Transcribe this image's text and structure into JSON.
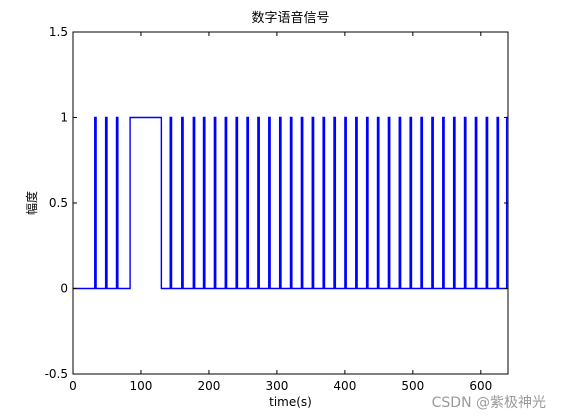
{
  "chart_data": {
    "type": "line",
    "title": "数字语音信号",
    "xlabel": "time(s)",
    "ylabel": "幅度",
    "xlim": [
      0,
      640
    ],
    "ylim": [
      -0.5,
      1.5
    ],
    "xticks": [
      0,
      100,
      200,
      300,
      400,
      500,
      600
    ],
    "yticks": [
      -0.5,
      0,
      0.5,
      1,
      1.5
    ],
    "ytick_labels": [
      "-0.5",
      "0",
      "0.5",
      "1",
      "1.5"
    ],
    "grid": false,
    "series": [
      {
        "color": "#0000ff",
        "style": "step",
        "x": [
          0,
          32,
          32,
          34,
          34,
          48,
          48,
          50,
          50,
          64,
          64,
          66,
          66,
          84,
          84,
          130,
          130,
          143,
          143,
          145,
          145,
          160,
          160,
          162,
          162,
          177,
          177,
          179,
          179,
          192,
          192,
          194,
          194,
          208,
          208,
          210,
          210,
          224,
          224,
          226,
          226,
          240,
          240,
          242,
          242,
          256,
          256,
          258,
          258,
          272,
          272,
          274,
          274,
          288,
          288,
          290,
          290,
          304,
          304,
          306,
          306,
          320,
          320,
          322,
          322,
          336,
          336,
          338,
          338,
          352,
          352,
          354,
          354,
          368,
          368,
          370,
          370,
          384,
          384,
          386,
          386,
          400,
          400,
          402,
          402,
          416,
          416,
          418,
          418,
          432,
          432,
          434,
          434,
          448,
          448,
          450,
          450,
          464,
          464,
          466,
          466,
          480,
          480,
          482,
          482,
          496,
          496,
          498,
          498,
          512,
          512,
          514,
          514,
          528,
          528,
          530,
          530,
          544,
          544,
          546,
          546,
          560,
          560,
          562,
          562,
          576,
          576,
          578,
          578,
          592,
          592,
          594,
          594,
          608,
          608,
          610,
          610,
          624,
          624,
          626,
          626,
          638,
          638,
          640
        ],
        "y": [
          0,
          0,
          1,
          1,
          0,
          0,
          1,
          1,
          0,
          0,
          1,
          1,
          0,
          0,
          1,
          1,
          0,
          0,
          1,
          1,
          0,
          0,
          1,
          1,
          0,
          0,
          1,
          1,
          0,
          0,
          1,
          1,
          0,
          0,
          1,
          1,
          0,
          0,
          1,
          1,
          0,
          0,
          1,
          1,
          0,
          0,
          1,
          1,
          0,
          0,
          1,
          1,
          0,
          0,
          1,
          1,
          0,
          0,
          1,
          1,
          0,
          0,
          1,
          1,
          0,
          0,
          1,
          1,
          0,
          0,
          1,
          1,
          0,
          0,
          1,
          1,
          0,
          0,
          1,
          1,
          0,
          0,
          1,
          1,
          0,
          0,
          1,
          1,
          0,
          0,
          1,
          1,
          0,
          0,
          1,
          1,
          0,
          0,
          1,
          1,
          0,
          0,
          1,
          1,
          0,
          0,
          1,
          1,
          0,
          0,
          1,
          1,
          0,
          0,
          1,
          1,
          0,
          0,
          1,
          1,
          0,
          0,
          1,
          1,
          0,
          0,
          1,
          1,
          0,
          0,
          1,
          1,
          0,
          0,
          1,
          1,
          0,
          0,
          1,
          1,
          0,
          0,
          1,
          1
        ]
      }
    ]
  },
  "watermark": "CSDN @紫极神光"
}
